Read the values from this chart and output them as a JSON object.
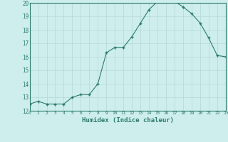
{
  "x": [
    0,
    1,
    2,
    3,
    4,
    5,
    6,
    7,
    8,
    9,
    10,
    11,
    12,
    13,
    14,
    15,
    16,
    17,
    18,
    19,
    20,
    21,
    22,
    23
  ],
  "y": [
    12.5,
    12.7,
    12.5,
    12.5,
    12.5,
    13.0,
    13.2,
    13.2,
    14.0,
    16.3,
    16.7,
    16.7,
    17.5,
    18.5,
    19.5,
    20.1,
    20.1,
    20.1,
    19.7,
    19.2,
    18.5,
    17.4,
    16.1,
    16.0
  ],
  "xlabel": "Humidex (Indice chaleur)",
  "xlim": [
    0,
    23
  ],
  "ylim": [
    12,
    20
  ],
  "yticks": [
    12,
    13,
    14,
    15,
    16,
    17,
    18,
    19,
    20
  ],
  "xticks": [
    0,
    1,
    2,
    3,
    4,
    5,
    6,
    7,
    8,
    9,
    10,
    11,
    12,
    13,
    14,
    15,
    16,
    17,
    18,
    19,
    20,
    21,
    22,
    23
  ],
  "line_color": "#2d7a6e",
  "bg_color": "#cdeeed",
  "grid_color": "#b8dbd9"
}
